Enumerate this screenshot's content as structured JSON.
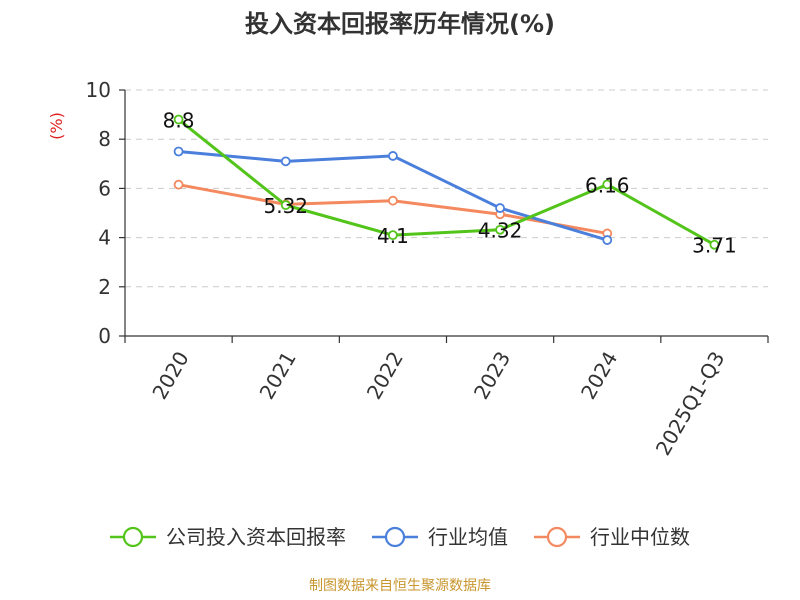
{
  "chart_data": {
    "type": "line",
    "title": "投入资本回报率历年情况(%)",
    "ylabel": "(%)",
    "xlabel": "",
    "ylim": [
      0,
      10
    ],
    "yticks": [
      0,
      2,
      4,
      6,
      8,
      10
    ],
    "grid": true,
    "categories": [
      "2020",
      "2021",
      "2022",
      "2023",
      "2024",
      "2025Q1-Q3"
    ],
    "series": [
      {
        "name": "公司投入资本回报率",
        "color": "#52c41a",
        "values": [
          8.8,
          5.32,
          4.1,
          4.32,
          6.16,
          3.71
        ],
        "labels": [
          "8.8",
          "5.32",
          "4.1",
          "4.32",
          "6.16",
          "3.71"
        ]
      },
      {
        "name": "行业均值",
        "color": "#4a7fdc",
        "values": [
          7.5,
          7.1,
          7.32,
          5.2,
          3.9,
          null
        ]
      },
      {
        "name": "行业中位数",
        "color": "#f4895f",
        "values": [
          6.15,
          5.35,
          5.5,
          4.95,
          4.17,
          null
        ]
      }
    ],
    "legend_position": "bottom"
  },
  "footer": {
    "source": "制图数据来自恒生聚源数据库"
  },
  "colors": {
    "axis": "#333333",
    "grid": "#cccccc",
    "title": "#333333",
    "ylabel": "#e02020",
    "source": "#c8962e"
  }
}
